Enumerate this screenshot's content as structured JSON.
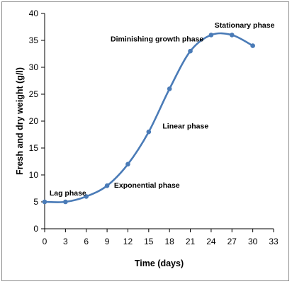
{
  "chart_data": {
    "type": "line",
    "xlabel": "Time (days)",
    "ylabel": "Fresh and dry weight (g/l)",
    "xlim": [
      0,
      33
    ],
    "ylim": [
      0,
      40
    ],
    "x_ticks": [
      "0",
      "3",
      "6",
      "9",
      "12",
      "15",
      "18",
      "21",
      "24",
      "27",
      "30",
      "33"
    ],
    "y_ticks": [
      "0",
      "5",
      "10",
      "15",
      "20",
      "25",
      "30",
      "35",
      "40"
    ],
    "grid": false,
    "series": [
      {
        "x": [
          0,
          3,
          6,
          9,
          12,
          15,
          18,
          21,
          24,
          27,
          30
        ],
        "values": [
          5,
          5,
          6,
          8,
          12,
          18,
          26,
          33,
          36,
          36,
          34
        ],
        "color": "#4a7bb7"
      }
    ],
    "annotations": [
      {
        "text": "Lag phase",
        "x": 0.7,
        "y": 6.2
      },
      {
        "text": "Exponential phase",
        "x": 10,
        "y": 7.6
      },
      {
        "text": "Linear phase",
        "x": 17,
        "y": 18.6
      },
      {
        "text": "Diminishing growth phase",
        "x": 9.5,
        "y": 34.8
      },
      {
        "text": "Stationary phase",
        "x": 24.5,
        "y": 37.4
      }
    ]
  }
}
